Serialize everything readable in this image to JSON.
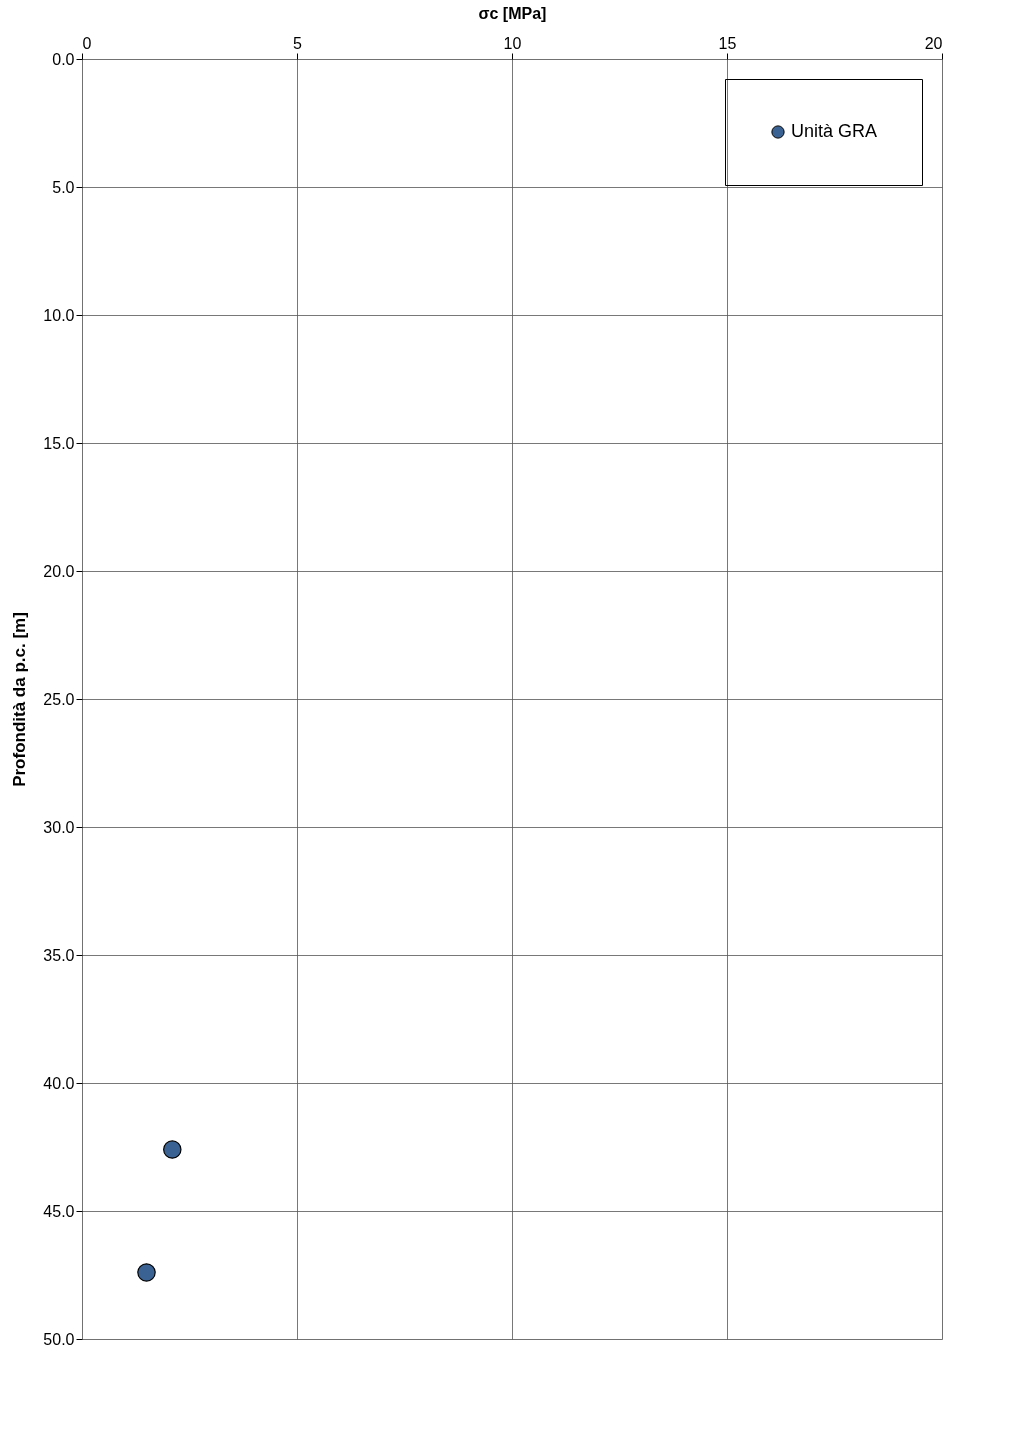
{
  "chart_data": {
    "type": "scatter",
    "xlabel": "σc [MPa]",
    "ylabel": "Profondità da p.c.  [m]",
    "series": [
      {
        "name": "Unità GRA",
        "color": "#3a6293",
        "x": [
          2.1,
          1.5
        ],
        "values": [
          42.6,
          47.4
        ]
      }
    ],
    "xlim": [
      0,
      20
    ],
    "xticks": [
      0,
      5,
      10,
      15,
      20
    ],
    "ylim": [
      50,
      0
    ],
    "yticks": [
      {
        "value": 0,
        "label": "0.0"
      },
      {
        "value": 5,
        "label": "5.0"
      },
      {
        "value": 10,
        "label": "10.0"
      },
      {
        "value": 15,
        "label": "15.0"
      },
      {
        "value": 20,
        "label": "20.0"
      },
      {
        "value": 25,
        "label": "25.0"
      },
      {
        "value": 30,
        "label": "30.0"
      },
      {
        "value": 35,
        "label": "35.0"
      },
      {
        "value": 40,
        "label": "40.0"
      },
      {
        "value": 45,
        "label": "45.0"
      },
      {
        "value": 50,
        "label": "50.0"
      }
    ],
    "grid": true,
    "legend": "top right",
    "marker": "circle"
  }
}
